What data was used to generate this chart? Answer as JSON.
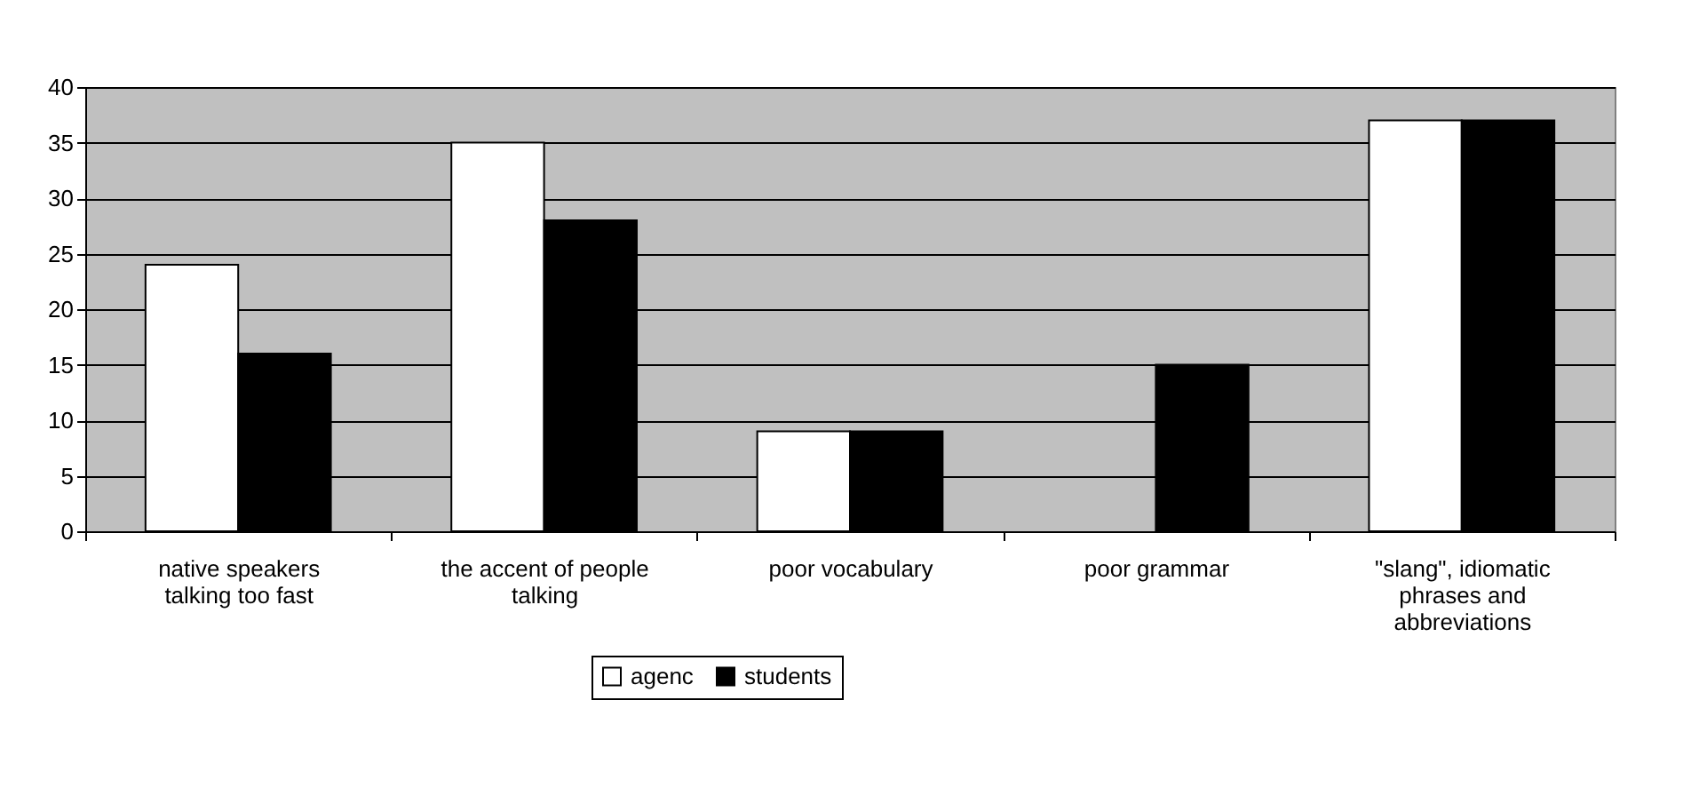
{
  "chart_data": {
    "type": "bar",
    "categories": [
      "native speakers talking too fast",
      "the accent of people talking",
      "poor vocabulary",
      "poor grammar",
      "\"slang\", idiomatic phrases and abbreviations"
    ],
    "series": [
      {
        "name": "agenc",
        "color": "#ffffff",
        "values": [
          24,
          35,
          9,
          null,
          37
        ]
      },
      {
        "name": "students",
        "color": "#000000",
        "values": [
          16,
          28,
          9,
          15,
          37
        ]
      }
    ],
    "ylim": [
      0,
      40
    ],
    "yticks": [
      0,
      5,
      10,
      15,
      20,
      25,
      30,
      35,
      40
    ],
    "grid": "y",
    "legend": "bottom"
  }
}
